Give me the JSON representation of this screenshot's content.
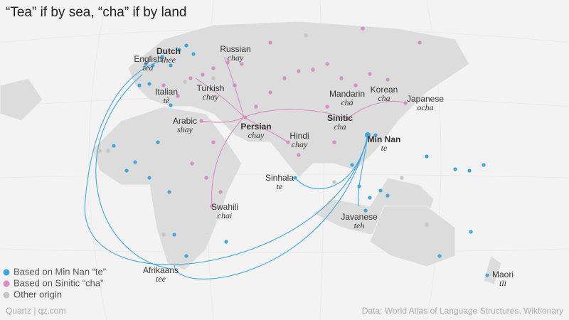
{
  "title": "“Tea” if by sea, “cha” if by land",
  "languages": [
    {
      "name": "English",
      "word": "tea"
    },
    {
      "name": "Dutch",
      "word": "thee"
    },
    {
      "name": "Russian",
      "word": "chay"
    },
    {
      "name": "Italian",
      "word": "tè"
    },
    {
      "name": "Turkish",
      "word": "chay"
    },
    {
      "name": "Arabic",
      "word": "shay"
    },
    {
      "name": "Persian",
      "word": "chay"
    },
    {
      "name": "Hindi",
      "word": "chay"
    },
    {
      "name": "Mandarin",
      "word": "chá"
    },
    {
      "name": "Korean",
      "word": "cha"
    },
    {
      "name": "Japanese",
      "word": "ocha"
    },
    {
      "name": "Sinitic",
      "word": "cha"
    },
    {
      "name": "Min Nan",
      "word": "te"
    },
    {
      "name": "Sinhala",
      "word": "te"
    },
    {
      "name": "Swahili",
      "word": "chai"
    },
    {
      "name": "Javanese",
      "word": "teh"
    },
    {
      "name": "Afrikaans",
      "word": "tee"
    },
    {
      "name": "Maori",
      "word": "tii"
    }
  ],
  "legend": [
    {
      "label": "Based on Min Nan “te”",
      "color": "#3fa7df"
    },
    {
      "label": "Based on Sinitic “cha”",
      "color": "#d68cc4"
    },
    {
      "label": "Other origin",
      "color": "#c4c4c4"
    }
  ],
  "credit": "Quartz | qz.com",
  "source": "Data: World Atlas of Language Structures, Wiktionary"
}
